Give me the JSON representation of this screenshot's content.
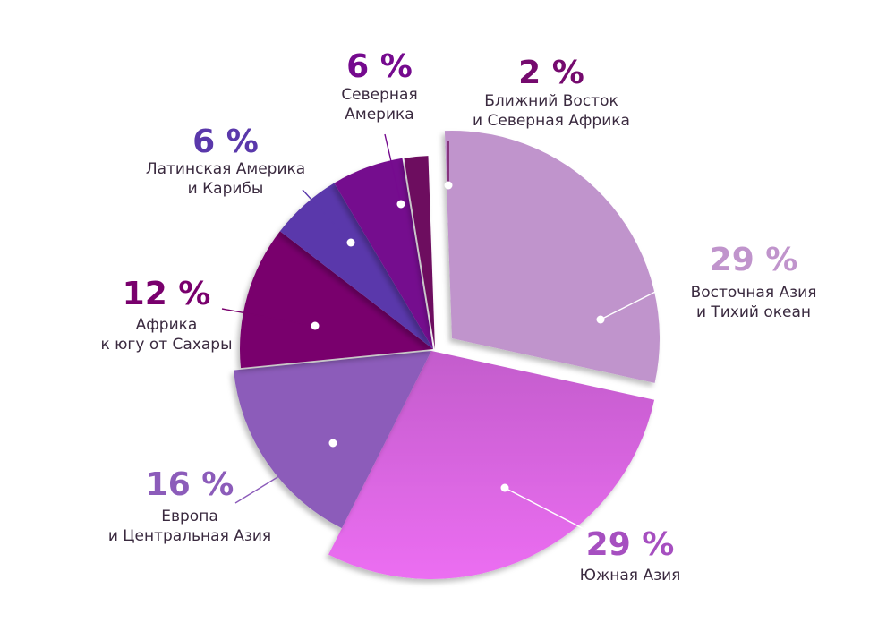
{
  "chart_data": {
    "type": "pie",
    "title": "",
    "slices": [
      {
        "label_lines": [
          "Восточная Азия",
          "и Тихий океан"
        ],
        "value": 29,
        "value_label": "29 %",
        "color": "#c094cc",
        "label_color": "#c094cc"
      },
      {
        "label_lines": [
          "Южная Азия"
        ],
        "value": 29,
        "value_label": "29 %",
        "color": "#da5fdf",
        "label_color": "#a64fc0"
      },
      {
        "label_lines": [
          "Европа",
          "и Центральная Азия"
        ],
        "value": 16,
        "value_label": "16 %",
        "color": "#8c5cba",
        "label_color": "#8c5cba"
      },
      {
        "label_lines": [
          "Африка",
          "к югу от Сахары"
        ],
        "value": 12,
        "value_label": "12 %",
        "color": "#79006d",
        "label_color": "#79006d"
      },
      {
        "label_lines": [
          "Латинская Америка",
          "и Карибы"
        ],
        "value": 6,
        "value_label": "6 %",
        "color": "#5a38ab",
        "label_color": "#5a38ab"
      },
      {
        "label_lines": [
          "Северная",
          "Америка"
        ],
        "value": 6,
        "value_label": "6 %",
        "color": "#750a8e",
        "label_color": "#750a8e"
      },
      {
        "label_lines": [
          "Ближний Восток",
          "и Северная Африка"
        ],
        "value": 2,
        "value_label": "2 %",
        "color": "#6d0a5e",
        "label_color": "#750a6e"
      }
    ]
  }
}
